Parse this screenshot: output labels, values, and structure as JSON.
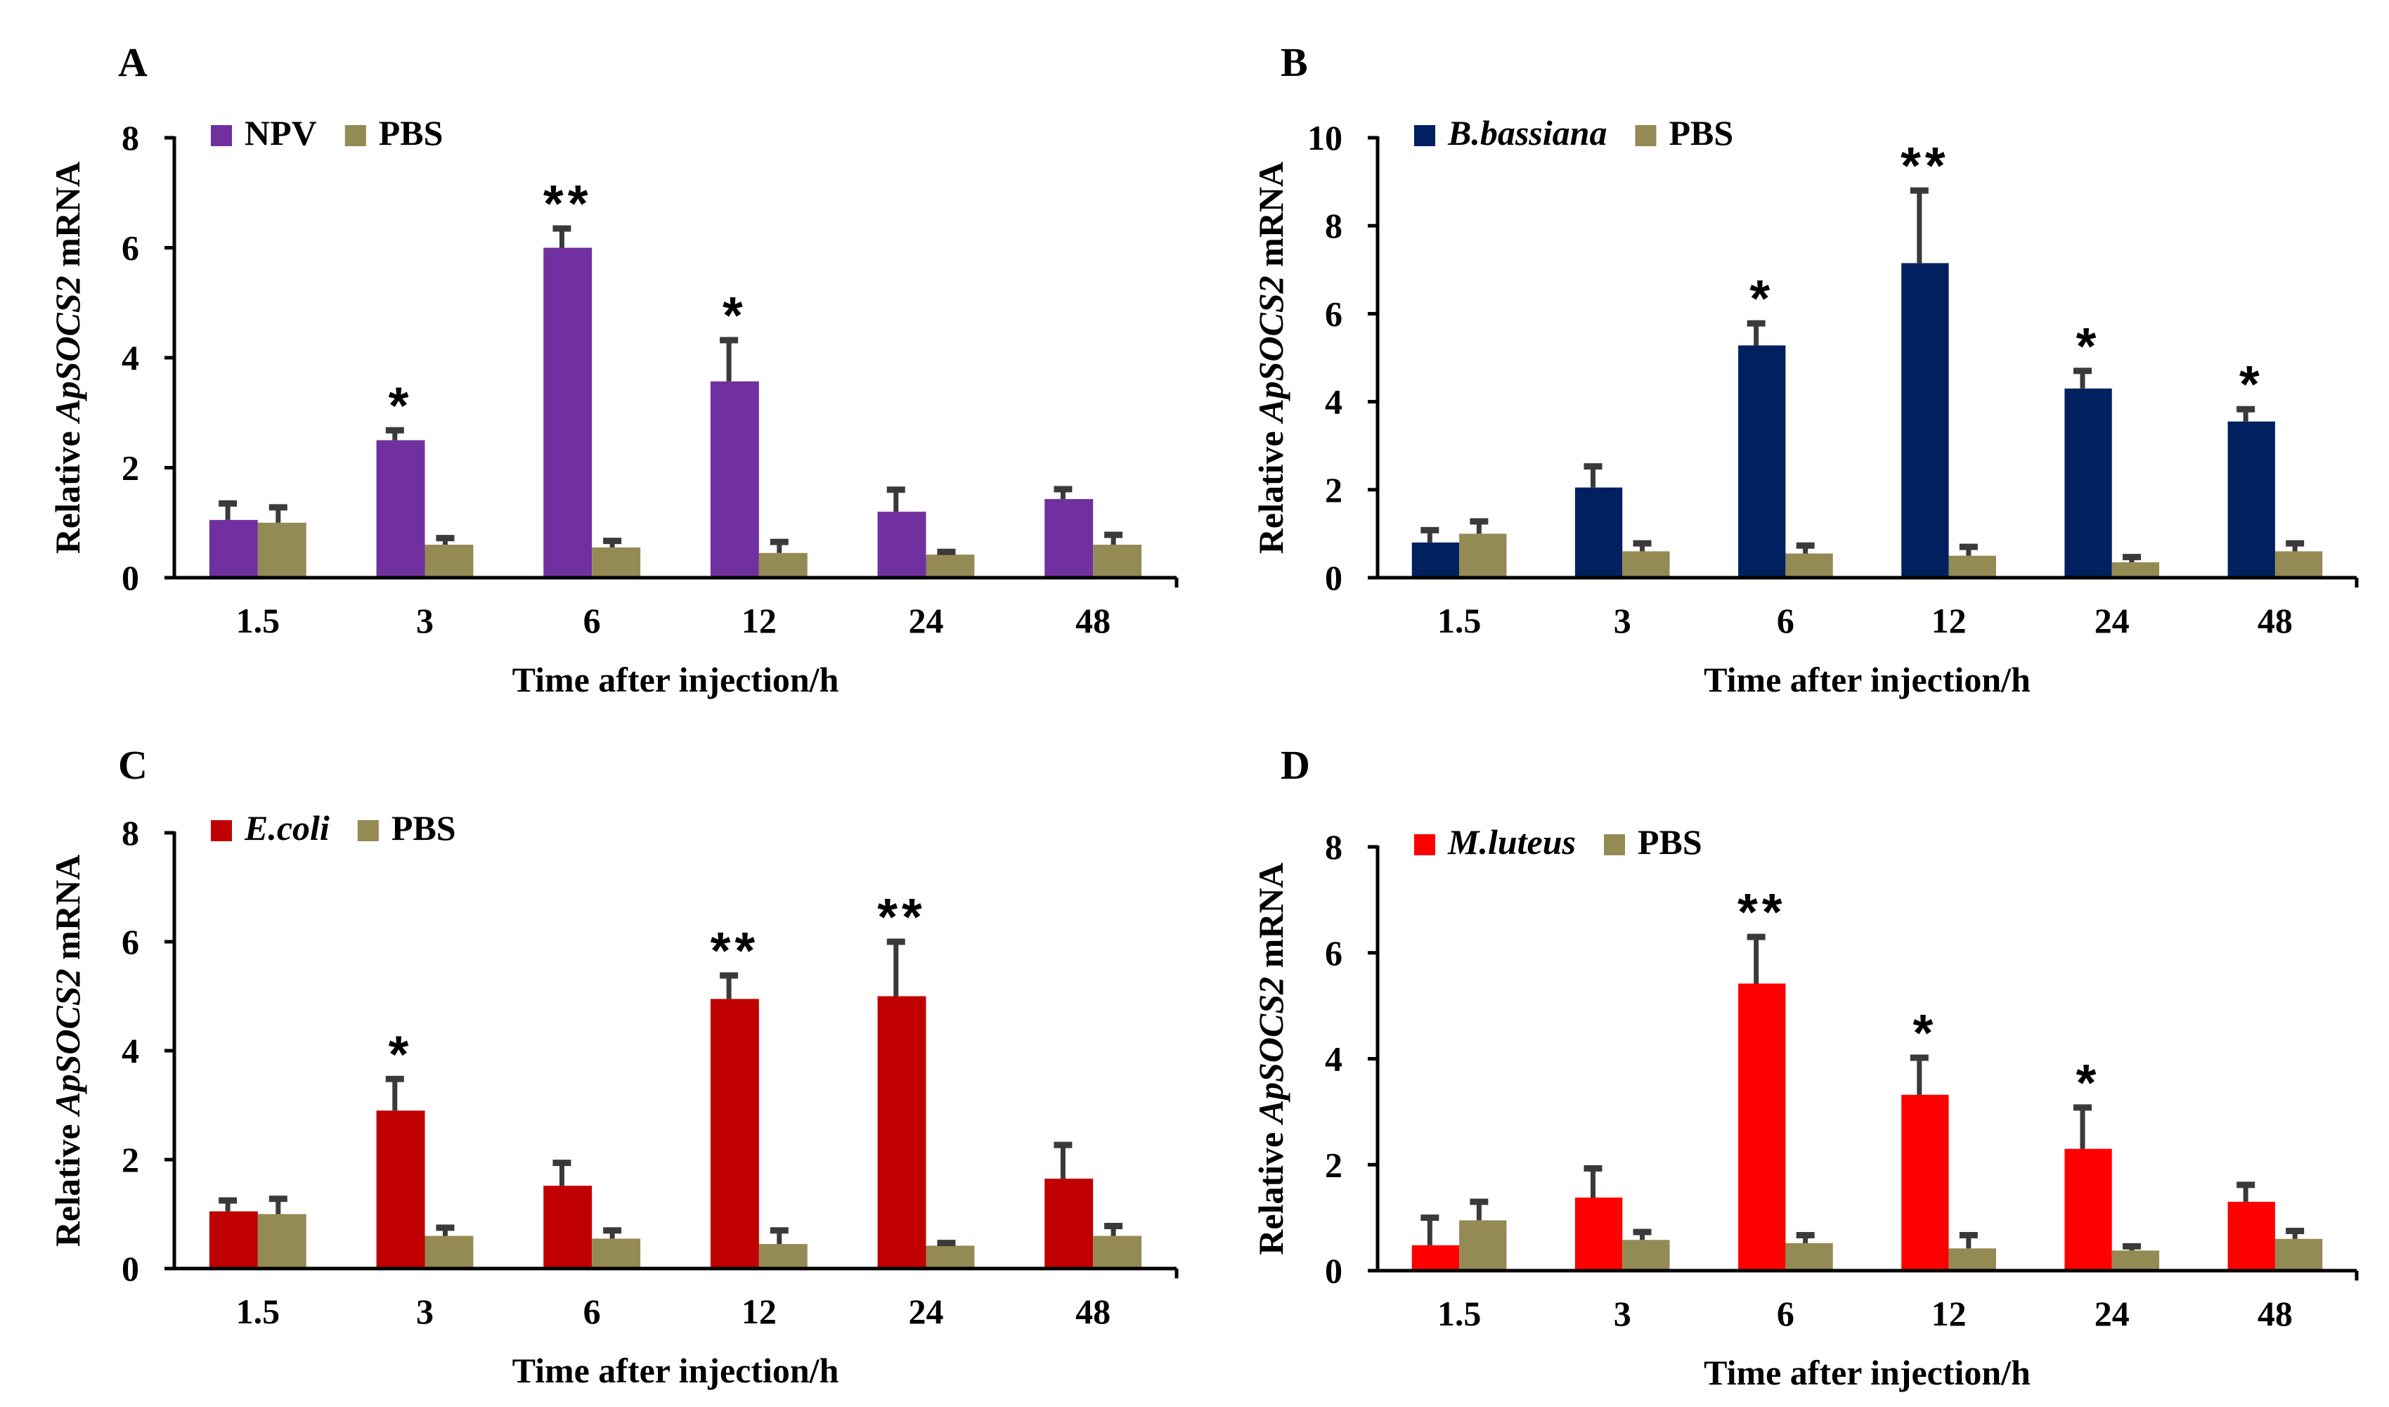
{
  "chart_data": [
    {
      "panel": "A",
      "type": "bar",
      "categories": [
        "1.5",
        "3",
        "6",
        "12",
        "24",
        "48"
      ],
      "series": [
        {
          "name": "NPV",
          "italic": false,
          "color": "#7030a0",
          "values": [
            1.05,
            2.5,
            6.0,
            3.57,
            1.2,
            1.43
          ],
          "errors": [
            0.3,
            0.18,
            0.35,
            0.75,
            0.4,
            0.18
          ]
        },
        {
          "name": "PBS",
          "italic": false,
          "color": "#948a54",
          "values": [
            1.0,
            0.6,
            0.55,
            0.45,
            0.42,
            0.6
          ],
          "errors": [
            0.28,
            0.12,
            0.12,
            0.2,
            0.05,
            0.18
          ]
        }
      ],
      "significance": [
        "",
        "*",
        "**",
        "*",
        "",
        ""
      ],
      "xlabel": "Time after injection/h",
      "ylabel": {
        "prefix": "Relative ",
        "italic": "ApSOCS2",
        "suffix": " mRNA"
      },
      "ylim": [
        0,
        8
      ],
      "yticks": [
        0,
        2,
        4,
        6,
        8
      ],
      "legend": "top-left"
    },
    {
      "panel": "B",
      "type": "bar",
      "categories": [
        "1.5",
        "3",
        "6",
        "12",
        "24",
        "48"
      ],
      "series": [
        {
          "name": "B.bassiana",
          "italic": true,
          "color": "#002060",
          "values": [
            0.8,
            2.05,
            5.28,
            7.15,
            4.3,
            3.55
          ],
          "errors": [
            0.28,
            0.48,
            0.5,
            1.65,
            0.4,
            0.28
          ]
        },
        {
          "name": "PBS",
          "italic": false,
          "color": "#948a54",
          "values": [
            1.0,
            0.6,
            0.55,
            0.5,
            0.35,
            0.6
          ],
          "errors": [
            0.28,
            0.18,
            0.18,
            0.2,
            0.12,
            0.18
          ]
        }
      ],
      "significance": [
        "",
        "",
        "*",
        "**",
        "*",
        "*"
      ],
      "xlabel": "Time after injection/h",
      "ylabel": {
        "prefix": "Relative ",
        "italic": "ApSOCS2",
        "suffix": " mRNA"
      },
      "ylim": [
        0,
        10
      ],
      "yticks": [
        0,
        2,
        4,
        6,
        8,
        10
      ],
      "legend": "top-left"
    },
    {
      "panel": "C",
      "type": "bar",
      "categories": [
        "1.5",
        "3",
        "6",
        "12",
        "24",
        "48"
      ],
      "series": [
        {
          "name": "E.coli",
          "italic": true,
          "color": "#c00000",
          "values": [
            1.05,
            2.9,
            1.52,
            4.95,
            5.0,
            1.65
          ],
          "errors": [
            0.2,
            0.58,
            0.42,
            0.43,
            1.0,
            0.62
          ]
        },
        {
          "name": "PBS",
          "italic": false,
          "color": "#948a54",
          "values": [
            1.0,
            0.6,
            0.55,
            0.45,
            0.42,
            0.6
          ],
          "errors": [
            0.28,
            0.15,
            0.15,
            0.25,
            0.05,
            0.18
          ]
        }
      ],
      "significance": [
        "",
        "*",
        "",
        "**",
        "**",
        ""
      ],
      "xlabel": "Time after injection/h",
      "ylabel": {
        "prefix": "Relative ",
        "italic": "ApSOCS2",
        "suffix": " mRNA"
      },
      "ylim": [
        0,
        8
      ],
      "yticks": [
        0,
        2,
        4,
        6,
        8
      ],
      "legend": "top-left"
    },
    {
      "panel": "D",
      "type": "bar",
      "categories": [
        "1.5",
        "3",
        "6",
        "12",
        "24",
        "48"
      ],
      "series": [
        {
          "name": "M.luteus",
          "italic": true,
          "color": "#ff0000",
          "values": [
            0.48,
            1.38,
            5.42,
            3.32,
            2.3,
            1.3
          ],
          "errors": [
            0.52,
            0.55,
            0.88,
            0.7,
            0.78,
            0.32
          ]
        },
        {
          "name": "PBS",
          "italic": false,
          "color": "#948a54",
          "values": [
            0.95,
            0.58,
            0.52,
            0.42,
            0.38,
            0.6
          ],
          "errors": [
            0.35,
            0.15,
            0.15,
            0.25,
            0.08,
            0.15
          ]
        }
      ],
      "significance": [
        "",
        "",
        "**",
        "*",
        "*",
        ""
      ],
      "xlabel": "Time after injection/h",
      "ylabel": {
        "prefix": "Relative ",
        "italic": "ApSOCS2",
        "suffix": " mRNA"
      },
      "ylim": [
        0,
        8
      ],
      "yticks": [
        0,
        2,
        4,
        6,
        8
      ],
      "legend": "top-left"
    }
  ]
}
